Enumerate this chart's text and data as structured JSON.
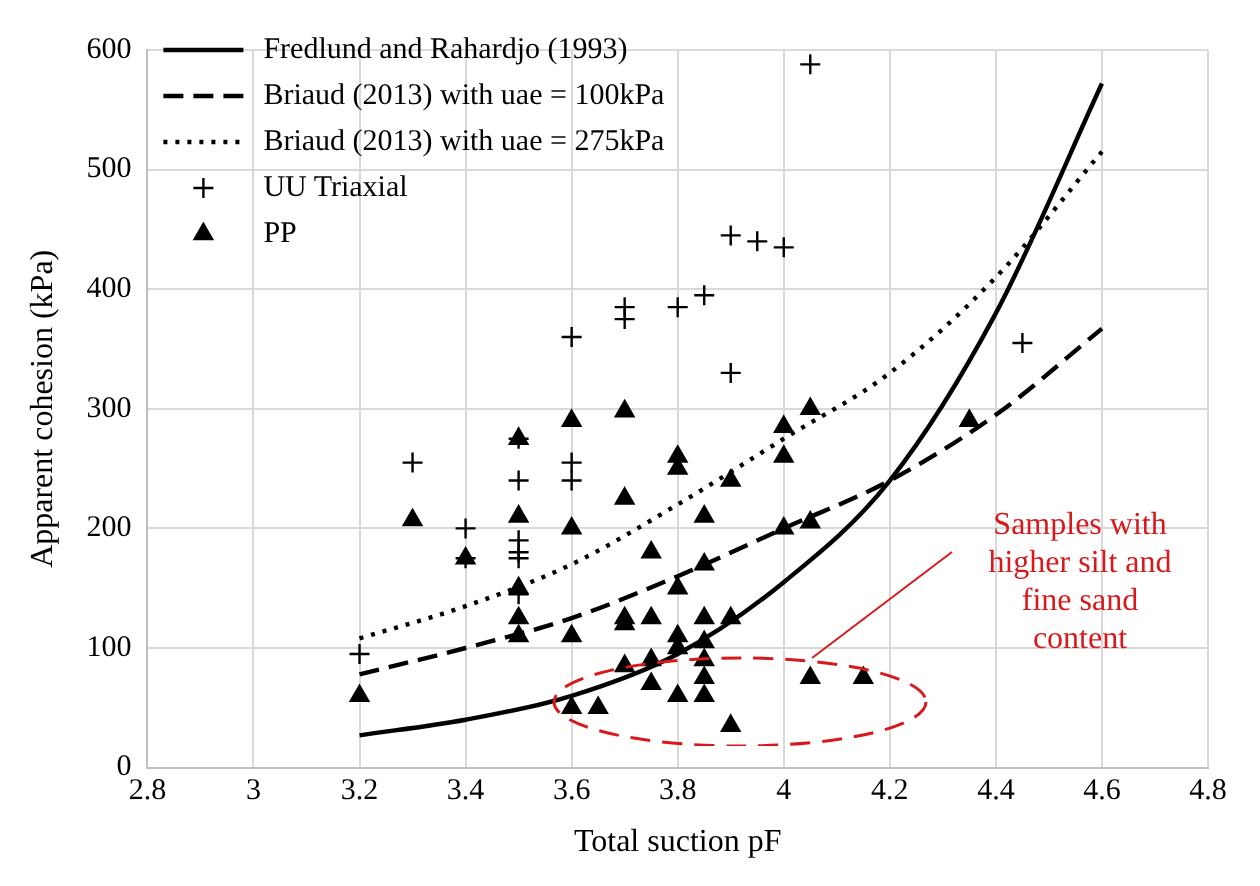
{
  "chart_data": {
    "type": "scatter",
    "xlabel": "Total suction pF",
    "ylabel": "Apparent cohesion (kPa)",
    "xlim": [
      2.8,
      4.8
    ],
    "xticks": [
      2.8,
      3,
      3.2,
      3.4,
      3.6,
      3.8,
      4,
      4.2,
      4.4,
      4.6,
      4.8
    ],
    "ylim": [
      0,
      600
    ],
    "yticks": [
      0,
      100,
      200,
      300,
      400,
      500,
      600
    ],
    "grid": true,
    "legend": "top left",
    "series": [
      {
        "name": "Fredlund and Rahardjo (1993)",
        "type": "line",
        "line_style": "solid",
        "color": "#000000",
        "x": [
          3.2,
          3.4,
          3.6,
          3.8,
          4.0,
          4.2,
          4.4,
          4.6
        ],
        "values": [
          27,
          40,
          60,
          95,
          155,
          240,
          380,
          572
        ]
      },
      {
        "name": "Briaud (2013) with uae = 100kPa",
        "type": "line",
        "line_style": "dashed",
        "color": "#000000",
        "x": [
          3.2,
          3.4,
          3.6,
          3.8,
          4.0,
          4.2,
          4.4,
          4.6
        ],
        "values": [
          78,
          100,
          125,
          160,
          200,
          240,
          295,
          367
        ]
      },
      {
        "name": "Briaud (2013) with uae = 275kPa",
        "type": "line",
        "line_style": "dotted",
        "color": "#000000",
        "x": [
          3.2,
          3.4,
          3.6,
          3.8,
          4.0,
          4.2,
          4.4,
          4.6
        ],
        "values": [
          108,
          135,
          170,
          220,
          275,
          330,
          410,
          515
        ]
      },
      {
        "name": "UU Triaxial",
        "marker": "cross",
        "color": "#000000",
        "x": [
          3.2,
          3.3,
          3.4,
          3.4,
          3.5,
          3.5,
          3.5,
          3.5,
          3.5,
          3.5,
          3.6,
          3.6,
          3.6,
          3.7,
          3.7,
          3.8,
          3.85,
          3.9,
          3.95,
          4.0,
          3.9,
          4.05,
          4.45
        ],
        "values": [
          95,
          255,
          200,
          175,
          275,
          240,
          190,
          180,
          175,
          145,
          360,
          255,
          240,
          385,
          375,
          385,
          395,
          445,
          440,
          435,
          330,
          588,
          355
        ]
      },
      {
        "name": "PP",
        "marker": "triangle",
        "color": "#000000",
        "x": [
          3.2,
          3.3,
          3.4,
          3.5,
          3.5,
          3.5,
          3.5,
          3.5,
          3.6,
          3.6,
          3.6,
          3.6,
          3.65,
          3.7,
          3.7,
          3.7,
          3.7,
          3.7,
          3.75,
          3.75,
          3.75,
          3.75,
          3.8,
          3.8,
          3.8,
          3.8,
          3.8,
          3.8,
          3.85,
          3.85,
          3.85,
          3.85,
          3.85,
          3.85,
          3.85,
          3.9,
          3.9,
          3.9,
          4.0,
          4.0,
          4.0,
          4.05,
          4.05,
          4.05,
          4.15,
          4.35
        ],
        "values": [
          60,
          207,
          175,
          275,
          210,
          150,
          125,
          110,
          290,
          200,
          110,
          50,
          50,
          298,
          225,
          125,
          120,
          85,
          180,
          125,
          90,
          70,
          260,
          250,
          150,
          110,
          100,
          60,
          210,
          170,
          125,
          105,
          90,
          75,
          60,
          240,
          125,
          35,
          285,
          260,
          200,
          300,
          205,
          75,
          75,
          290
        ]
      }
    ],
    "annotations": [
      "Samples with higher silt and fine sand content"
    ]
  }
}
